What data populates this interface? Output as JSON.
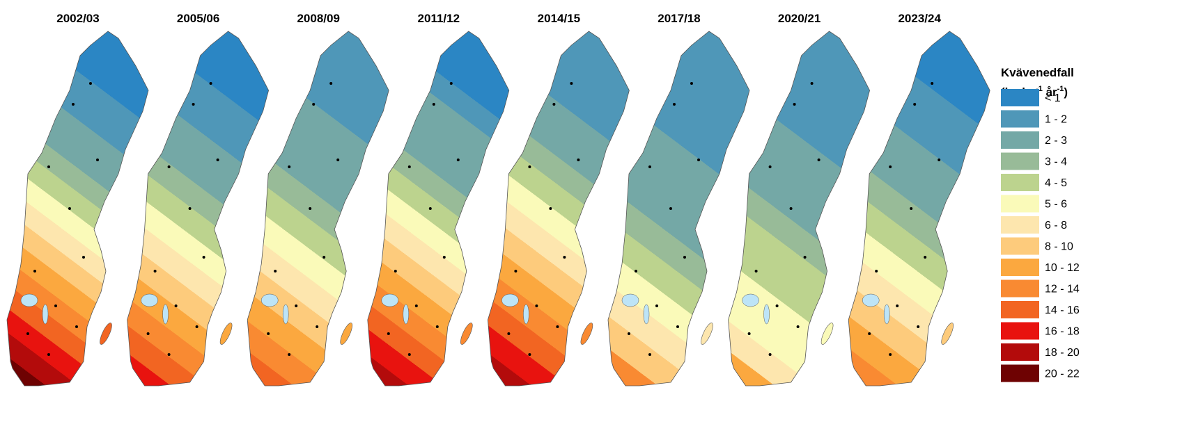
{
  "maps": [
    {
      "title": "2002/03"
    },
    {
      "title": "2005/06"
    },
    {
      "title": "2008/09"
    },
    {
      "title": "2011/12"
    },
    {
      "title": "2014/15"
    },
    {
      "title": "2017/18"
    },
    {
      "title": "2020/21"
    },
    {
      "title": "2023/24"
    }
  ],
  "legend": {
    "title": "Kvävenedfall",
    "unit": [
      "(kg ha",
      "-1",
      " år",
      "-1",
      ")"
    ],
    "classes": [
      {
        "label": "< 1",
        "color": "#2b86c4"
      },
      {
        "label": "1 - 2",
        "color": "#4f97b8"
      },
      {
        "label": "2 - 3",
        "color": "#74a8a6"
      },
      {
        "label": "3 - 4",
        "color": "#98bb98"
      },
      {
        "label": "4 - 5",
        "color": "#bcd38e"
      },
      {
        "label": "5 - 6",
        "color": "#fafab9"
      },
      {
        "label": "6 - 8",
        "color": "#fde6ae"
      },
      {
        "label": "8 - 10",
        "color": "#fdcb7c"
      },
      {
        "label": "10 - 12",
        "color": "#fba83f"
      },
      {
        "label": "12 - 14",
        "color": "#f98a32"
      },
      {
        "label": "14 - 16",
        "color": "#f26522"
      },
      {
        "label": "16 - 18",
        "color": "#e8130f"
      },
      {
        "label": "18 - 20",
        "color": "#b30b0b"
      },
      {
        "label": "20 - 22",
        "color": "#6e0202"
      }
    ]
  }
}
